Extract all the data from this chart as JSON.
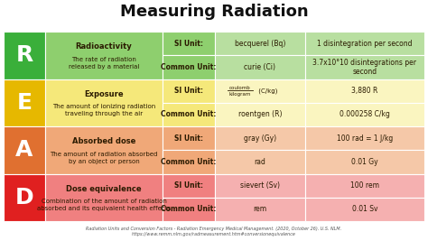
{
  "title": "Measuring Radiation",
  "background_color": "#ffffff",
  "title_fontsize": 13,
  "rows": [
    {
      "letter": "R",
      "letter_bg": "#3aaf3a",
      "letter_color": "#ffffff",
      "row_bg_dark": "#8ecf6e",
      "row_bg_light": "#b8dfa0",
      "name": "Radioactivity",
      "description": "The rate of radiation\nreleased by a material",
      "si_unit_name": "becquerel (Bq)",
      "si_unit_value": "1 disintegration per second",
      "common_unit_name": "curie (Ci)",
      "common_unit_value": "3.7x10°10 disintegrations per\nsecond",
      "si_label": "SI Unit:",
      "common_label": "Common Unit:"
    },
    {
      "letter": "E",
      "letter_bg": "#e6b800",
      "letter_color": "#ffffff",
      "row_bg_dark": "#f5e87a",
      "row_bg_light": "#faf5c0",
      "name": "Exposure",
      "description": "The amount of ionizing radiation\ntraveling through the air",
      "si_unit_name_frac_top": "coulomb",
      "si_unit_name_frac_bot": "kilogram",
      "si_unit_name_suffix": " (C/kg)",
      "si_unit_value": "3,880 R",
      "common_unit_name": "roentgen (R)",
      "common_unit_value": "0.000258 C/kg",
      "si_label": "SI Unit:",
      "common_label": "Common Unit:",
      "has_fraction": true
    },
    {
      "letter": "A",
      "letter_bg": "#e07030",
      "letter_color": "#ffffff",
      "row_bg_dark": "#f0a878",
      "row_bg_light": "#f5c8a8",
      "name": "Absorbed dose",
      "description": "The amount of radiation absorbed\nby an object or person",
      "si_unit_name": "gray (Gy)",
      "si_unit_value": "100 rad = 1 J/kg",
      "common_unit_name": "rad",
      "common_unit_value": "0.01 Gy",
      "si_label": "SI Unit:",
      "common_label": "Common Unit:"
    },
    {
      "letter": "D",
      "letter_bg": "#e02020",
      "letter_color": "#ffffff",
      "row_bg_dark": "#f08080",
      "row_bg_light": "#f5b0b0",
      "name": "Dose equivalence",
      "description": "Combination of the amount of radiation\nabsorbed and its equivalent health effects",
      "si_unit_name": "sievert (Sv)",
      "si_unit_value": "100 rem",
      "common_unit_name": "rem",
      "common_unit_value": "0.01 Sv",
      "si_label": "SI Unit:",
      "common_label": "Common Unit:"
    }
  ],
  "footer_line1": "Radiation Units and Conversion Factors - Radiation Emergency Medical Management. (2020, October 26). U.S. NLM.",
  "footer_line2": "https://www.remm.nlm.gov/radmeasurement.htm#conversionequivalence",
  "text_color": "#2a1a00"
}
